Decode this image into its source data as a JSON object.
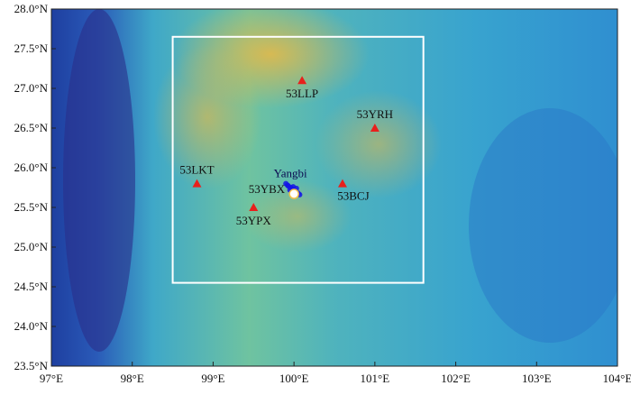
{
  "chart_data": {
    "type": "map",
    "xlim": [
      97,
      104
    ],
    "ylim": [
      23.5,
      28
    ],
    "xticks": [
      {
        "value": 97,
        "label": "97°E"
      },
      {
        "value": 98,
        "label": "98°E"
      },
      {
        "value": 99,
        "label": "99°E"
      },
      {
        "value": 100,
        "label": "100°E"
      },
      {
        "value": 101,
        "label": "101°E"
      },
      {
        "value": 102,
        "label": "102°E"
      },
      {
        "value": 103,
        "label": "103°E"
      },
      {
        "value": 104,
        "label": "104°E"
      }
    ],
    "yticks": [
      {
        "value": 23.5,
        "label": "23.5°N"
      },
      {
        "value": 24,
        "label": "24.0°N"
      },
      {
        "value": 24.5,
        "label": "24.5°N"
      },
      {
        "value": 25,
        "label": "25.0°N"
      },
      {
        "value": 25.5,
        "label": "25.5°N"
      },
      {
        "value": 26,
        "label": "26.0°N"
      },
      {
        "value": 26.5,
        "label": "26.5°N"
      },
      {
        "value": 27,
        "label": "27.0°N"
      },
      {
        "value": 27.5,
        "label": "27.5°N"
      },
      {
        "value": 28,
        "label": "28.0°N"
      }
    ],
    "region": {
      "xlim": [
        98.5,
        101.6
      ],
      "ylim": [
        24.55,
        27.65
      ],
      "color": "#ffffff"
    },
    "stations": {
      "color": "#e8201c",
      "names": [
        "53LLP",
        "53YRH",
        "53LKT",
        "53BCJ",
        "53YPX"
      ],
      "x": [
        100.1,
        101.0,
        98.8,
        100.6,
        99.5
      ],
      "y": [
        27.1,
        26.5,
        25.8,
        25.8,
        25.5
      ]
    },
    "near_station": {
      "name": "53YBX",
      "x": 100.0,
      "y": 25.67,
      "color": "#ffffff"
    },
    "epicenter": {
      "name": "Yangbi",
      "color": "#1414e6",
      "x": [
        99.9,
        99.93,
        99.96,
        99.98,
        100.0,
        100.02,
        100.05,
        100.07,
        99.95,
        99.99,
        100.03,
        99.92
      ],
      "y": [
        25.8,
        25.77,
        25.75,
        25.73,
        25.71,
        25.7,
        25.68,
        25.66,
        25.72,
        25.76,
        25.74,
        25.78
      ]
    }
  }
}
